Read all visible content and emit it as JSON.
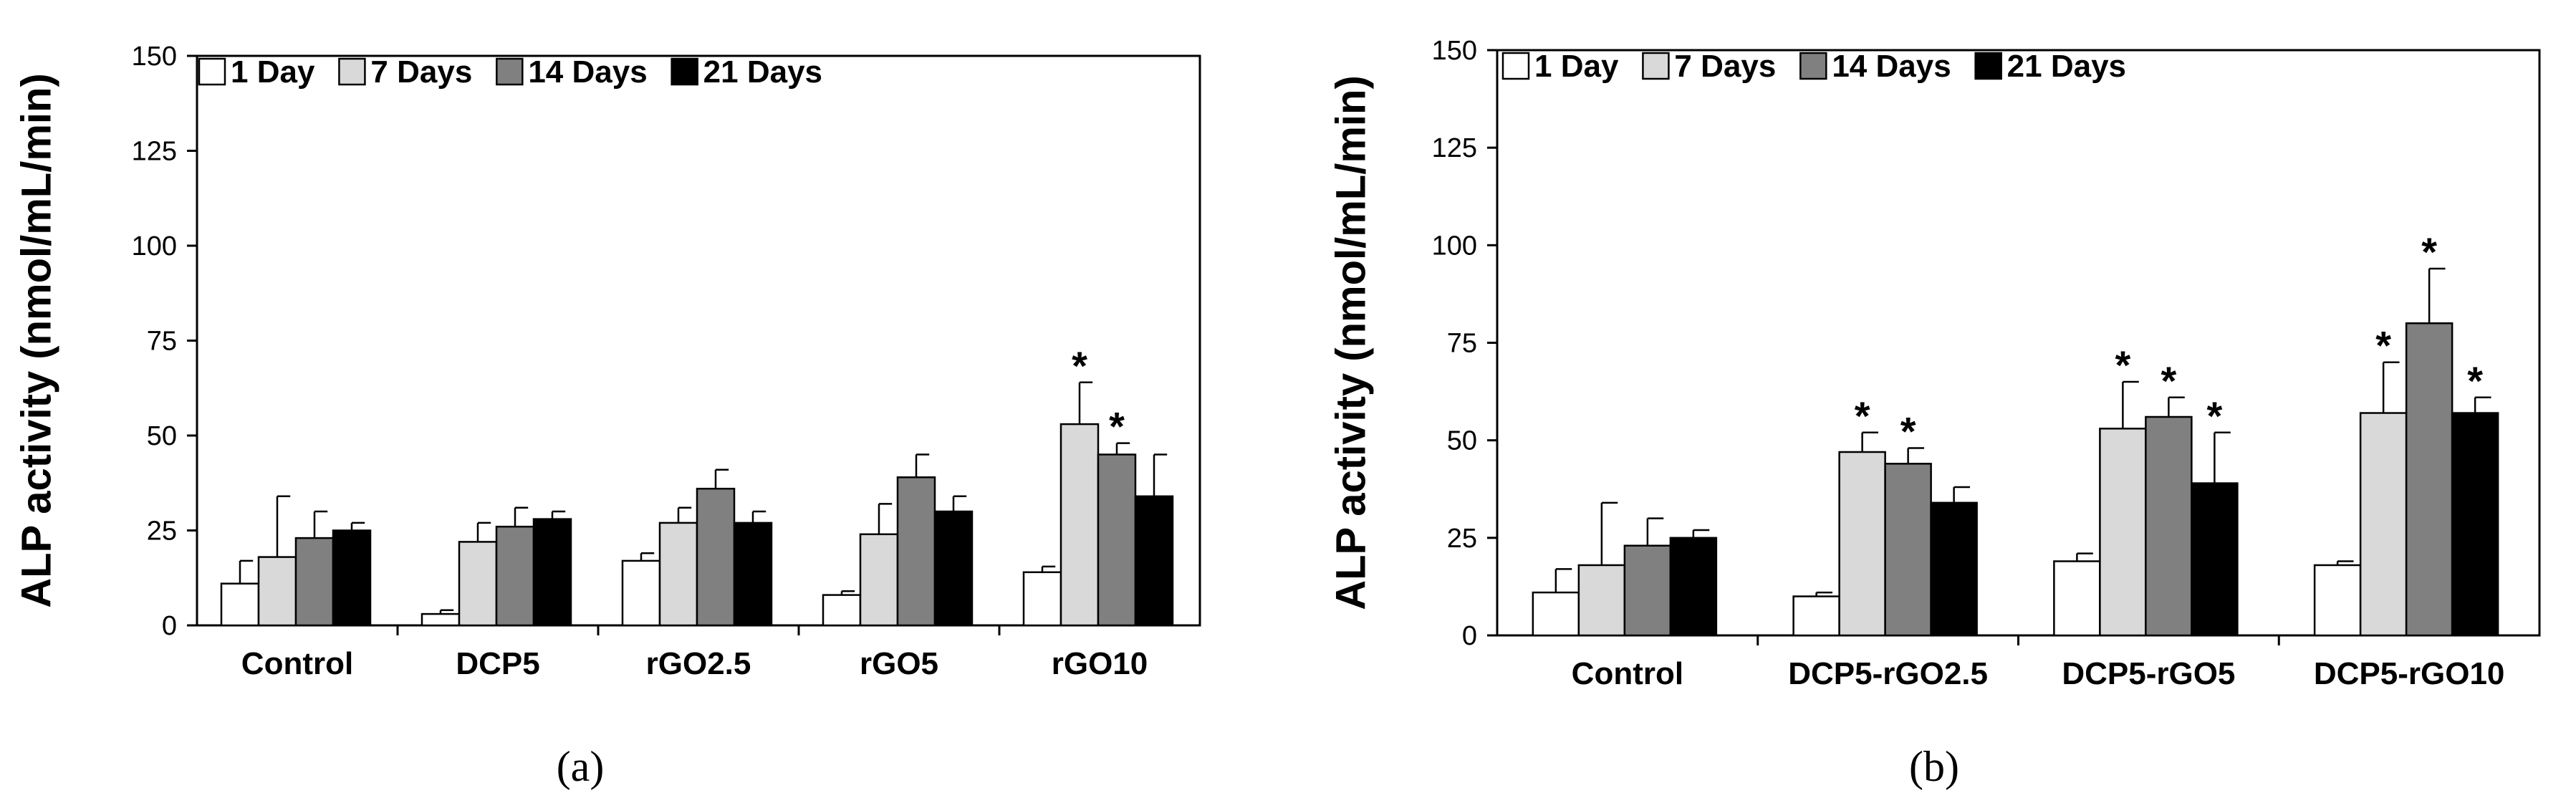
{
  "chart_data": [
    {
      "type": "bar",
      "panel_label": "(a)",
      "ylabel": "ALP activity (nmol/mL/min)",
      "ylim": [
        0,
        150
      ],
      "yticks": [
        0,
        25,
        50,
        75,
        100,
        125,
        150
      ],
      "legend_position": "top-left",
      "categories": [
        "Control",
        "DCP5",
        "rGO2.5",
        "rGO5",
        "rGO10"
      ],
      "series": [
        {
          "name": "1 Day",
          "color": "#ffffff",
          "values": [
            11,
            3,
            17,
            8,
            14
          ],
          "errors": [
            6,
            1,
            2,
            1,
            1.5
          ],
          "significant": [
            false,
            false,
            false,
            false,
            false
          ]
        },
        {
          "name": "7 Days",
          "color": "#d9d9d9",
          "values": [
            18,
            22,
            27,
            24,
            53
          ],
          "errors": [
            16,
            5,
            4,
            8,
            11
          ],
          "significant": [
            false,
            false,
            false,
            false,
            true
          ]
        },
        {
          "name": "14 Days",
          "color": "#808080",
          "values": [
            23,
            26,
            36,
            39,
            45
          ],
          "errors": [
            7,
            5,
            5,
            6,
            3
          ],
          "significant": [
            false,
            false,
            false,
            false,
            true
          ]
        },
        {
          "name": "21 Days",
          "color": "#000000",
          "values": [
            25,
            28,
            27,
            30,
            34
          ],
          "errors": [
            2,
            2,
            3,
            4,
            11
          ],
          "significant": [
            false,
            false,
            false,
            false,
            false
          ]
        }
      ],
      "star_symbol": "*"
    },
    {
      "type": "bar",
      "panel_label": "(b)",
      "ylabel": "ALP activity (nmol/mL/min)",
      "ylim": [
        0,
        150
      ],
      "yticks": [
        0,
        25,
        50,
        75,
        100,
        125,
        150
      ],
      "legend_position": "top-left",
      "categories": [
        "Control",
        "DCP5-rGO2.5",
        "DCP5-rGO5",
        "DCP5-rGO10"
      ],
      "series": [
        {
          "name": "1 Day",
          "color": "#ffffff",
          "values": [
            11,
            10,
            19,
            18
          ],
          "errors": [
            6,
            1,
            2,
            1
          ],
          "significant": [
            false,
            false,
            false,
            false
          ]
        },
        {
          "name": "7 Days",
          "color": "#d9d9d9",
          "values": [
            18,
            47,
            53,
            57
          ],
          "errors": [
            16,
            5,
            12,
            13
          ],
          "significant": [
            false,
            true,
            true,
            true
          ]
        },
        {
          "name": "14 Days",
          "color": "#808080",
          "values": [
            23,
            44,
            56,
            80
          ],
          "errors": [
            7,
            4,
            5,
            14
          ],
          "significant": [
            false,
            true,
            true,
            true
          ]
        },
        {
          "name": "21 Days",
          "color": "#000000",
          "values": [
            25,
            34,
            39,
            57
          ],
          "errors": [
            2,
            4,
            13,
            4
          ],
          "significant": [
            false,
            false,
            true,
            true
          ]
        }
      ],
      "star_symbol": "*"
    }
  ]
}
